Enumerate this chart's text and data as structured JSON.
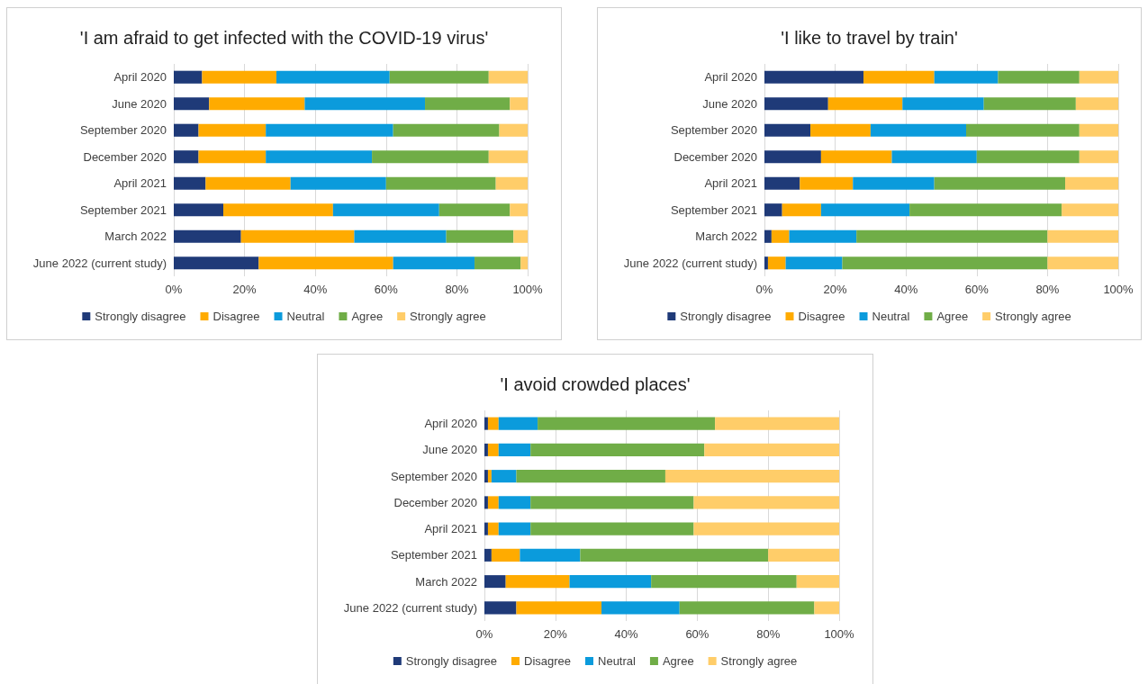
{
  "chart_data": [
    {
      "type": "bar",
      "title": "'I am afraid to get infected with the COVID-19 virus'",
      "orientation": "horizontal",
      "stacked": true,
      "grid": "x",
      "legend": "bottom",
      "categories": [
        "April 2020",
        "June 2020",
        "September 2020",
        "December 2020",
        "April 2021",
        "September 2021",
        "March 2022",
        "June 2022 (current study)"
      ],
      "xlim": [
        0,
        100
      ],
      "xticks": [
        {
          "value": 0,
          "label": "0%"
        },
        {
          "value": 20,
          "label": "20%"
        },
        {
          "value": 40,
          "label": "40%"
        },
        {
          "value": 60,
          "label": "60%"
        },
        {
          "value": 80,
          "label": "80%"
        },
        {
          "value": 100,
          "label": "100%"
        }
      ],
      "series": [
        {
          "name": "Strongly disagree",
          "color": "#1f3a78",
          "values": [
            8,
            10,
            7,
            7,
            9,
            14,
            19,
            24
          ]
        },
        {
          "name": "Disagree",
          "color": "#ffab00",
          "values": [
            21,
            27,
            19,
            19,
            24,
            31,
            32,
            38
          ]
        },
        {
          "name": "Neutral",
          "color": "#0b9bdc",
          "values": [
            32,
            34,
            36,
            30,
            27,
            30,
            26,
            23
          ]
        },
        {
          "name": "Agree",
          "color": "#70ad47",
          "values": [
            28,
            24,
            30,
            33,
            31,
            20,
            19,
            13
          ]
        },
        {
          "name": "Strongly agree",
          "color": "#ffcd69",
          "values": [
            11,
            5,
            8,
            11,
            9,
            5,
            4,
            2
          ]
        }
      ]
    },
    {
      "type": "bar",
      "title": "'I like to travel by train'",
      "orientation": "horizontal",
      "stacked": true,
      "grid": "x",
      "legend": "bottom",
      "categories": [
        "April 2020",
        "June 2020",
        "September 2020",
        "December 2020",
        "April 2021",
        "September 2021",
        "March 2022",
        "June 2022 (current study)"
      ],
      "xlim": [
        0,
        100
      ],
      "xticks": [
        {
          "value": 0,
          "label": "0%"
        },
        {
          "value": 20,
          "label": "20%"
        },
        {
          "value": 40,
          "label": "40%"
        },
        {
          "value": 60,
          "label": "60%"
        },
        {
          "value": 80,
          "label": "80%"
        },
        {
          "value": 100,
          "label": "100%"
        }
      ],
      "series": [
        {
          "name": "Strongly disagree",
          "color": "#1f3a78",
          "values": [
            28,
            18,
            13,
            16,
            10,
            5,
            2,
            1
          ]
        },
        {
          "name": "Disagree",
          "color": "#ffab00",
          "values": [
            20,
            21,
            17,
            20,
            15,
            11,
            5,
            5
          ]
        },
        {
          "name": "Neutral",
          "color": "#0b9bdc",
          "values": [
            18,
            23,
            27,
            24,
            23,
            25,
            19,
            16
          ]
        },
        {
          "name": "Agree",
          "color": "#70ad47",
          "values": [
            23,
            26,
            32,
            29,
            37,
            43,
            54,
            58
          ]
        },
        {
          "name": "Strongly agree",
          "color": "#ffcd69",
          "values": [
            11,
            12,
            11,
            11,
            15,
            16,
            20,
            20
          ]
        }
      ]
    },
    {
      "type": "bar",
      "title": "'I avoid crowded places'",
      "orientation": "horizontal",
      "stacked": true,
      "grid": "x",
      "legend": "bottom",
      "categories": [
        "April 2020",
        "June 2020",
        "September 2020",
        "December 2020",
        "April 2021",
        "September 2021",
        "March 2022",
        "June 2022 (current study)"
      ],
      "xlim": [
        0,
        100
      ],
      "xticks": [
        {
          "value": 0,
          "label": "0%"
        },
        {
          "value": 20,
          "label": "20%"
        },
        {
          "value": 40,
          "label": "40%"
        },
        {
          "value": 60,
          "label": "60%"
        },
        {
          "value": 80,
          "label": "80%"
        },
        {
          "value": 100,
          "label": "100%"
        }
      ],
      "series": [
        {
          "name": "Strongly disagree",
          "color": "#1f3a78",
          "values": [
            1,
            1,
            1,
            1,
            1,
            2,
            6,
            9
          ]
        },
        {
          "name": "Disagree",
          "color": "#ffab00",
          "values": [
            3,
            3,
            1,
            3,
            3,
            8,
            18,
            24
          ]
        },
        {
          "name": "Neutral",
          "color": "#0b9bdc",
          "values": [
            11,
            9,
            7,
            9,
            9,
            17,
            23,
            22
          ]
        },
        {
          "name": "Agree",
          "color": "#70ad47",
          "values": [
            50,
            49,
            42,
            46,
            46,
            53,
            41,
            38
          ]
        },
        {
          "name": "Strongly agree",
          "color": "#ffcd69",
          "values": [
            35,
            38,
            49,
            41,
            41,
            20,
            12,
            7
          ]
        }
      ]
    }
  ]
}
